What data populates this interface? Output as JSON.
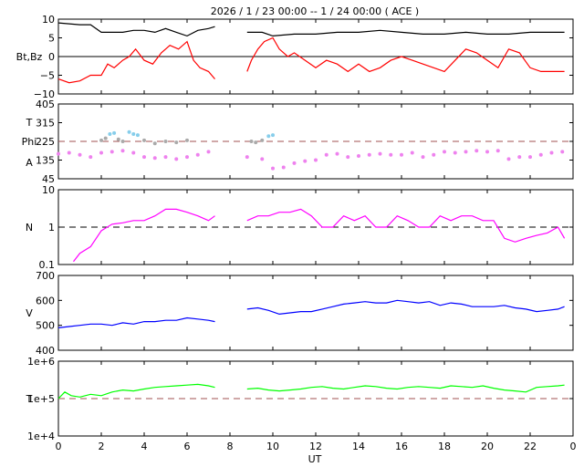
{
  "title": "2026 /  1 / 23   00:00 -- 1 / 24   00:00 ( ACE )",
  "x_axis": {
    "label": "UT",
    "ticks": [
      "0",
      "2",
      "4",
      "6",
      "8",
      "10",
      "12",
      "14",
      "16",
      "18",
      "20",
      "22",
      "0"
    ]
  },
  "colors": {
    "bt": "#000000",
    "bz": "#ff0000",
    "theta": "#87ceeb",
    "phi_toward": "#aaaaaa",
    "phi_away": "#ee82ee",
    "density": "#ff00ff",
    "speed": "#0000ff",
    "temperature": "#00ff00",
    "reference_line": "#a05050"
  },
  "chart_data": [
    {
      "type": "line",
      "panel": "magnetic_field",
      "ylabel": "Bt,Bz",
      "ytick_labels": [
        "10",
        "5",
        "0",
        "−5",
        "−10"
      ],
      "ylim": [
        -10,
        10
      ],
      "xlim": [
        0,
        24
      ],
      "gaps": [
        [
          7.3,
          8.8
        ]
      ],
      "series": [
        {
          "name": "Bt",
          "color": "#000000",
          "x": [
            0,
            1,
            1.5,
            2,
            2.5,
            3,
            3.5,
            4,
            4.5,
            5,
            5.5,
            6,
            6.5,
            7,
            7.3,
            8.8,
            9.5,
            10,
            11,
            12,
            13,
            14,
            15,
            16,
            17,
            18,
            19,
            20,
            21,
            22,
            23,
            23.6
          ],
          "y": [
            9,
            8.5,
            8.5,
            6.5,
            6.5,
            6.5,
            7,
            7,
            6.5,
            7.5,
            6.5,
            5.5,
            7,
            7.5,
            8,
            6.5,
            6.5,
            5.5,
            6,
            6,
            6.5,
            6.5,
            7,
            6.5,
            6,
            6,
            6.5,
            6,
            6,
            6.5,
            6.5,
            6.5
          ]
        },
        {
          "name": "Bz",
          "color": "#ff0000",
          "x": [
            0,
            0.5,
            1,
            1.5,
            2,
            2.3,
            2.6,
            3,
            3.3,
            3.6,
            4,
            4.4,
            4.8,
            5.2,
            5.6,
            6,
            6.3,
            6.6,
            7,
            7.3,
            8.8,
            9,
            9.3,
            9.6,
            10,
            10.3,
            10.7,
            11,
            11.5,
            12,
            12.5,
            13,
            13.5,
            14,
            14.5,
            15,
            15.5,
            16,
            16.5,
            17,
            17.5,
            18,
            18.5,
            19,
            19.5,
            20,
            20.5,
            21,
            21.5,
            22,
            22.5,
            23,
            23.6
          ],
          "y": [
            -6,
            -7,
            -6.5,
            -5,
            -5,
            -2,
            -3,
            -1,
            0,
            2,
            -1,
            -2,
            1,
            3,
            2,
            4,
            -1,
            -3,
            -4,
            -6,
            -4,
            -1,
            2,
            4,
            5,
            2,
            0,
            1,
            -1,
            -3,
            -1,
            -2,
            -4,
            -2,
            -4,
            -3,
            -1,
            0,
            -1,
            -2,
            -3,
            -4,
            -1,
            2,
            1,
            -1,
            -3,
            2,
            1,
            -3,
            -4,
            -4,
            -4
          ]
        }
      ]
    },
    {
      "type": "scatter",
      "panel": "field_angles",
      "ylabel_lines": [
        "T",
        "Phi",
        "A"
      ],
      "ytick_labels": [
        "405",
        "315",
        "225",
        "135",
        "45"
      ],
      "ylim": [
        45,
        405
      ],
      "reference_line": 225,
      "series": [
        {
          "name": "Theta",
          "color": "#87ceeb",
          "x": [
            2.4,
            2.6,
            3.3,
            3.5,
            3.7,
            9.8,
            10.0
          ],
          "y": [
            260,
            265,
            270,
            260,
            255,
            250,
            255
          ]
        },
        {
          "name": "Phi toward",
          "color": "#aaaaaa",
          "x": [
            2.0,
            2.2,
            2.8,
            3.0,
            4.0,
            4.5,
            5.0,
            5.5,
            6.0,
            9.0,
            9.2,
            9.5
          ],
          "y": [
            230,
            240,
            235,
            225,
            230,
            215,
            225,
            220,
            230,
            225,
            220,
            230
          ]
        },
        {
          "name": "Phi away",
          "color": "#ee82ee",
          "x": [
            0,
            0.5,
            1,
            1.5,
            2,
            2.5,
            3,
            3.5,
            4,
            4.5,
            5,
            5.5,
            6,
            6.5,
            7,
            8.8,
            9.5,
            10,
            10.5,
            11,
            11.5,
            12,
            12.5,
            13,
            13.5,
            14,
            14.5,
            15,
            15.5,
            16,
            16.5,
            17,
            17.5,
            18,
            18.5,
            19,
            19.5,
            20,
            20.5,
            21,
            21.5,
            22,
            22.5,
            23,
            23.5
          ],
          "y": [
            165,
            170,
            160,
            150,
            170,
            175,
            180,
            170,
            150,
            145,
            150,
            140,
            150,
            160,
            175,
            150,
            140,
            95,
            100,
            120,
            130,
            135,
            160,
            165,
            150,
            155,
            160,
            165,
            160,
            160,
            170,
            150,
            160,
            175,
            170,
            175,
            180,
            175,
            180,
            140,
            150,
            150,
            160,
            170,
            175
          ]
        }
      ]
    },
    {
      "type": "line",
      "panel": "density",
      "ylabel": "N",
      "ytick_labels": [
        "10",
        "1",
        "0.1"
      ],
      "yscale": "log",
      "ylim": [
        0.1,
        10
      ],
      "reference_line": 1,
      "series": [
        {
          "name": "N",
          "color": "#ff00ff",
          "x": [
            0.7,
            1,
            1.5,
            2,
            2.5,
            3,
            3.5,
            4,
            4.5,
            5,
            5.5,
            6,
            6.5,
            7,
            7.3,
            8.8,
            9.3,
            9.8,
            10.3,
            10.8,
            11.3,
            11.8,
            12.3,
            12.8,
            13.3,
            13.8,
            14.3,
            14.8,
            15.3,
            15.8,
            16.3,
            16.8,
            17.3,
            17.8,
            18.3,
            18.8,
            19.3,
            19.8,
            20.3,
            20.8,
            21.3,
            21.8,
            22.3,
            22.8,
            23.3,
            23.6
          ],
          "y": [
            0.12,
            0.2,
            0.3,
            0.8,
            1.2,
            1.3,
            1.5,
            1.5,
            2,
            3,
            3,
            2.5,
            2,
            1.5,
            2,
            1.5,
            2,
            2,
            2.5,
            2.5,
            3,
            2,
            1,
            1,
            2,
            1.5,
            2,
            1,
            1,
            2,
            1.5,
            1,
            1,
            2,
            1.5,
            2,
            2,
            1.5,
            1.5,
            0.5,
            0.4,
            0.5,
            0.6,
            0.7,
            1,
            0.5
          ]
        }
      ]
    },
    {
      "type": "line",
      "panel": "speed",
      "ylabel": "V",
      "ytick_labels": [
        "700",
        "600",
        "500",
        "400"
      ],
      "ylim": [
        400,
        700
      ],
      "series": [
        {
          "name": "V",
          "color": "#0000ff",
          "x": [
            0,
            0.5,
            1,
            1.5,
            2,
            2.5,
            3,
            3.5,
            4,
            4.5,
            5,
            5.5,
            6,
            6.5,
            7,
            7.3,
            8.8,
            9.3,
            9.8,
            10.3,
            10.8,
            11.3,
            11.8,
            12.3,
            12.8,
            13.3,
            13.8,
            14.3,
            14.8,
            15.3,
            15.8,
            16.3,
            16.8,
            17.3,
            17.8,
            18.3,
            18.8,
            19.3,
            19.8,
            20.3,
            20.8,
            21.3,
            21.8,
            22.3,
            22.8,
            23.3,
            23.6
          ],
          "y": [
            490,
            495,
            500,
            505,
            505,
            500,
            510,
            505,
            515,
            515,
            520,
            520,
            530,
            525,
            520,
            515,
            565,
            570,
            560,
            545,
            550,
            555,
            555,
            565,
            575,
            585,
            590,
            595,
            590,
            590,
            600,
            595,
            590,
            595,
            580,
            590,
            585,
            575,
            575,
            575,
            580,
            570,
            565,
            555,
            560,
            565,
            575
          ]
        }
      ]
    },
    {
      "type": "line",
      "panel": "temperature",
      "ylabel": "T",
      "ytick_labels": [
        "1e+6",
        "1e+5",
        "1e+4"
      ],
      "yscale": "log",
      "ylim": [
        10000,
        1000000
      ],
      "reference_line": 100000,
      "series": [
        {
          "name": "T",
          "color": "#00ff00",
          "x": [
            0,
            0.3,
            0.6,
            1,
            1.5,
            2,
            2.5,
            3,
            3.5,
            4,
            4.5,
            5,
            5.5,
            6,
            6.5,
            7,
            7.3,
            8.8,
            9.3,
            9.8,
            10.3,
            10.8,
            11.3,
            11.8,
            12.3,
            12.8,
            13.3,
            13.8,
            14.3,
            14.8,
            15.3,
            15.8,
            16.3,
            16.8,
            17.3,
            17.8,
            18.3,
            18.8,
            19.3,
            19.8,
            20.3,
            20.8,
            21.3,
            21.8,
            22.3,
            22.8,
            23.3,
            23.6
          ],
          "y": [
            100000,
            150000,
            120000,
            110000,
            130000,
            120000,
            150000,
            170000,
            160000,
            180000,
            200000,
            210000,
            220000,
            230000,
            240000,
            220000,
            200000,
            180000,
            190000,
            170000,
            160000,
            170000,
            180000,
            200000,
            210000,
            190000,
            180000,
            200000,
            220000,
            210000,
            190000,
            180000,
            200000,
            210000,
            200000,
            190000,
            220000,
            210000,
            200000,
            220000,
            190000,
            170000,
            160000,
            150000,
            200000,
            210000,
            220000,
            230000
          ]
        }
      ]
    }
  ]
}
